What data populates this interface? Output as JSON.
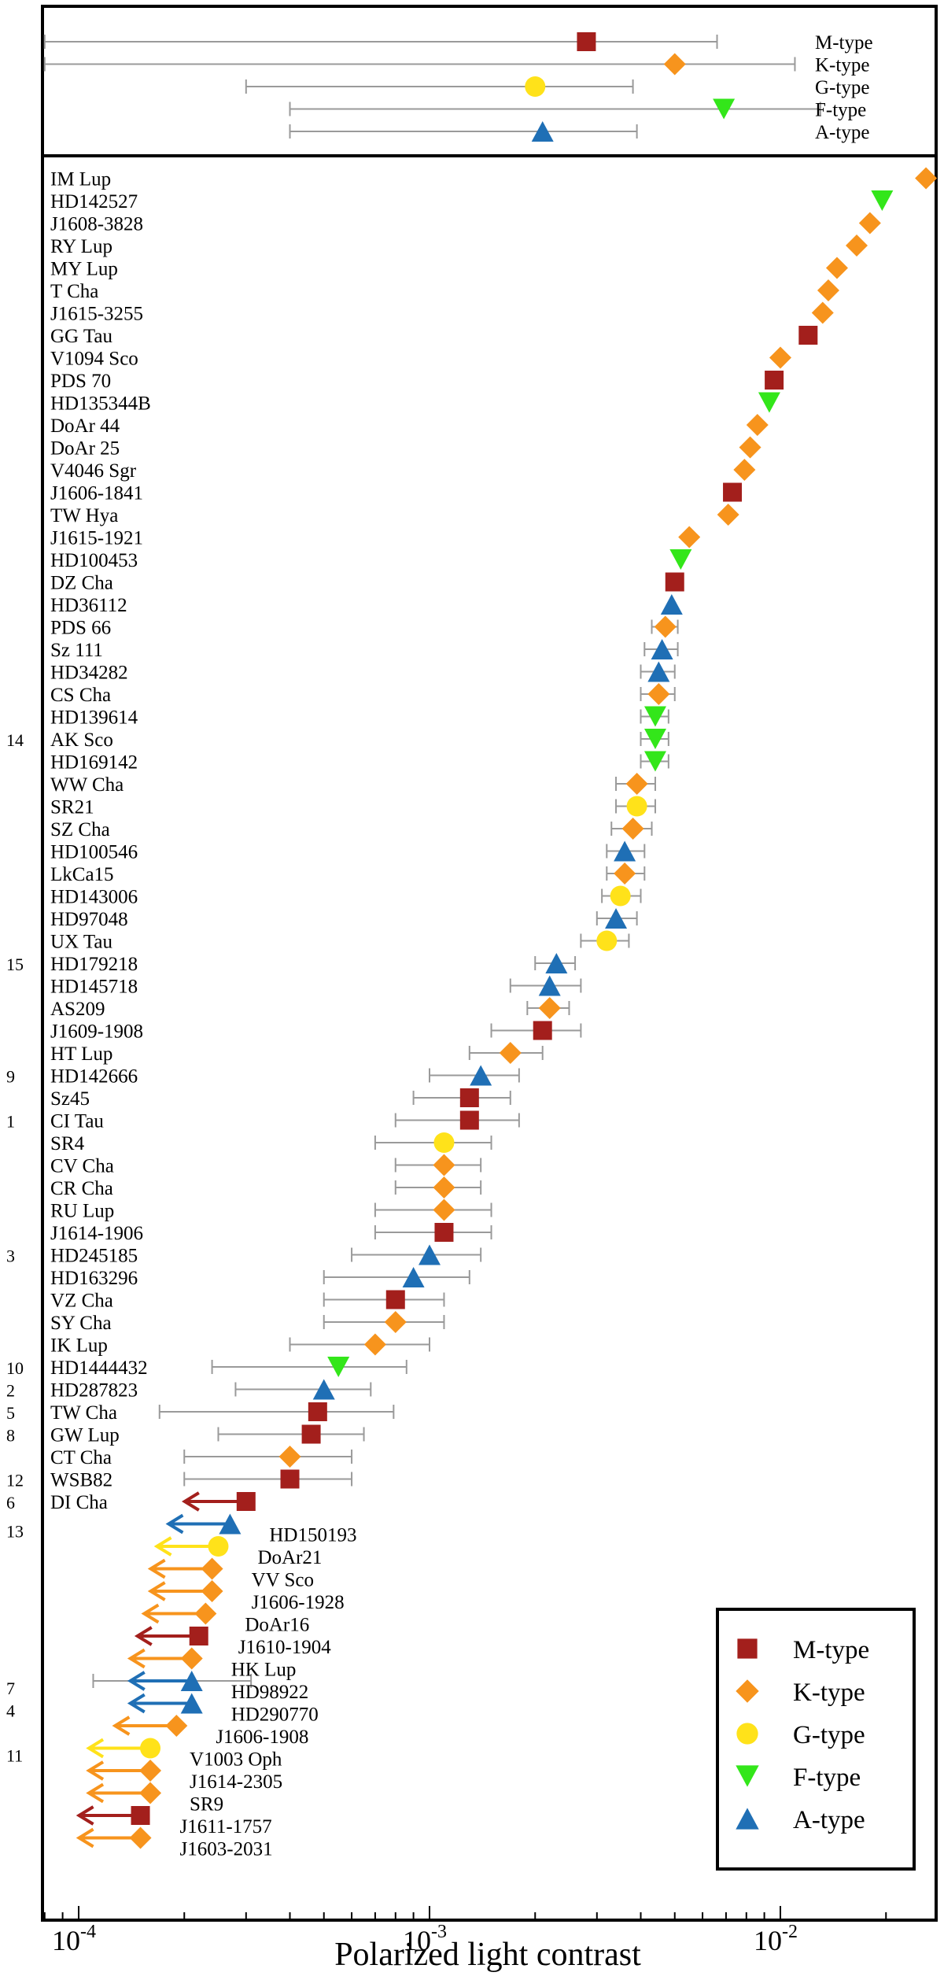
{
  "chart_data": {
    "type": "scatter",
    "xlabel": "Polarized light contrast",
    "xscale": "log",
    "xlim": [
      8e-05,
      0.03
    ],
    "x_ticks": [
      {
        "value": 0.0001,
        "base": "10",
        "exp": "-4"
      },
      {
        "value": 0.001,
        "base": "10",
        "exp": "-3"
      },
      {
        "value": 0.01,
        "base": "10",
        "exp": "-2"
      }
    ],
    "colors": {
      "M-type": "#a31f1c",
      "K-type": "#f7941d",
      "G-type": "#ffe21a",
      "F-type": "#33e61a",
      "A-type": "#1f6fb5"
    },
    "markers": {
      "M-type": "square",
      "K-type": "diamond",
      "G-type": "circle",
      "F-type": "triangle-down",
      "A-type": "triangle-up"
    },
    "legend": {
      "position": "bottom-right",
      "entries": [
        "M-type",
        "K-type",
        "G-type",
        "F-type",
        "A-type"
      ]
    },
    "summary": [
      {
        "type": "M-type",
        "label": "M-type",
        "x": 0.0028,
        "lo": 8e-05,
        "hi": 0.0066
      },
      {
        "type": "K-type",
        "label": "K-type",
        "x": 0.005,
        "lo": 8e-05,
        "hi": 0.011
      },
      {
        "type": "G-type",
        "label": "G-type",
        "x": 0.002,
        "lo": 0.0003,
        "hi": 0.0038
      },
      {
        "type": "F-type",
        "label": "F-type",
        "x": 0.0069,
        "lo": 0.0004,
        "hi": 0.013
      },
      {
        "type": "A-type",
        "label": "A-type",
        "x": 0.0021,
        "lo": 0.0004,
        "hi": 0.0039
      }
    ],
    "detections": [
      {
        "name": "IM Lup",
        "type": "K-type",
        "x": 0.026,
        "lo": null,
        "hi": null,
        "ref": ""
      },
      {
        "name": "HD142527",
        "type": "F-type",
        "x": 0.0195,
        "lo": null,
        "hi": null,
        "ref": ""
      },
      {
        "name": "J1608-3828",
        "type": "K-type",
        "x": 0.018,
        "lo": null,
        "hi": null,
        "ref": ""
      },
      {
        "name": "RY Lup",
        "type": "K-type",
        "x": 0.0165,
        "lo": null,
        "hi": null,
        "ref": ""
      },
      {
        "name": "MY Lup",
        "type": "K-type",
        "x": 0.0145,
        "lo": null,
        "hi": null,
        "ref": ""
      },
      {
        "name": "T Cha",
        "type": "K-type",
        "x": 0.0137,
        "lo": null,
        "hi": null,
        "ref": ""
      },
      {
        "name": "J1615-3255",
        "type": "K-type",
        "x": 0.0132,
        "lo": null,
        "hi": null,
        "ref": ""
      },
      {
        "name": "GG Tau",
        "type": "M-type",
        "x": 0.012,
        "lo": null,
        "hi": null,
        "ref": ""
      },
      {
        "name": "V1094 Sco",
        "type": "K-type",
        "x": 0.01,
        "lo": null,
        "hi": null,
        "ref": ""
      },
      {
        "name": "PDS 70",
        "type": "M-type",
        "x": 0.0096,
        "lo": null,
        "hi": null,
        "ref": ""
      },
      {
        "name": "HD135344B",
        "type": "F-type",
        "x": 0.0093,
        "lo": null,
        "hi": null,
        "ref": ""
      },
      {
        "name": "DoAr 44",
        "type": "K-type",
        "x": 0.0086,
        "lo": null,
        "hi": null,
        "ref": ""
      },
      {
        "name": "DoAr 25",
        "type": "K-type",
        "x": 0.0082,
        "lo": null,
        "hi": null,
        "ref": ""
      },
      {
        "name": "V4046 Sgr",
        "type": "K-type",
        "x": 0.0079,
        "lo": null,
        "hi": null,
        "ref": ""
      },
      {
        "name": "J1606-1841",
        "type": "M-type",
        "x": 0.0073,
        "lo": null,
        "hi": null,
        "ref": ""
      },
      {
        "name": "TW Hya",
        "type": "K-type",
        "x": 0.0071,
        "lo": null,
        "hi": null,
        "ref": ""
      },
      {
        "name": "J1615-1921",
        "type": "K-type",
        "x": 0.0055,
        "lo": null,
        "hi": null,
        "ref": ""
      },
      {
        "name": "HD100453",
        "type": "F-type",
        "x": 0.0052,
        "lo": null,
        "hi": null,
        "ref": ""
      },
      {
        "name": "DZ Cha",
        "type": "M-type",
        "x": 0.005,
        "lo": null,
        "hi": null,
        "ref": ""
      },
      {
        "name": "HD36112",
        "type": "A-type",
        "x": 0.0049,
        "lo": null,
        "hi": null,
        "ref": ""
      },
      {
        "name": "PDS 66",
        "type": "K-type",
        "x": 0.0047,
        "lo": 0.0043,
        "hi": 0.0051,
        "ref": ""
      },
      {
        "name": "Sz 111",
        "type": "A-type",
        "x": 0.0046,
        "lo": 0.0041,
        "hi": 0.0051,
        "ref": ""
      },
      {
        "name": "HD34282",
        "type": "A-type",
        "x": 0.0045,
        "lo": 0.004,
        "hi": 0.005,
        "ref": ""
      },
      {
        "name": "CS Cha",
        "type": "K-type",
        "x": 0.0045,
        "lo": 0.004,
        "hi": 0.005,
        "ref": ""
      },
      {
        "name": "HD139614",
        "type": "F-type",
        "x": 0.0044,
        "lo": 0.004,
        "hi": 0.0048,
        "ref": ""
      },
      {
        "name": "AK Sco",
        "type": "F-type",
        "x": 0.0044,
        "lo": 0.004,
        "hi": 0.0048,
        "ref": "14"
      },
      {
        "name": "HD169142",
        "type": "F-type",
        "x": 0.0044,
        "lo": 0.004,
        "hi": 0.0048,
        "ref": ""
      },
      {
        "name": "WW Cha",
        "type": "K-type",
        "x": 0.0039,
        "lo": 0.0034,
        "hi": 0.0044,
        "ref": ""
      },
      {
        "name": "SR21",
        "type": "G-type",
        "x": 0.0039,
        "lo": 0.0034,
        "hi": 0.0044,
        "ref": ""
      },
      {
        "name": "SZ Cha",
        "type": "K-type",
        "x": 0.0038,
        "lo": 0.0033,
        "hi": 0.0043,
        "ref": ""
      },
      {
        "name": "HD100546",
        "type": "A-type",
        "x": 0.0036,
        "lo": 0.0032,
        "hi": 0.0041,
        "ref": ""
      },
      {
        "name": "LkCa15",
        "type": "K-type",
        "x": 0.0036,
        "lo": 0.0032,
        "hi": 0.0041,
        "ref": ""
      },
      {
        "name": "HD143006",
        "type": "G-type",
        "x": 0.0035,
        "lo": 0.0031,
        "hi": 0.004,
        "ref": ""
      },
      {
        "name": "HD97048",
        "type": "A-type",
        "x": 0.0034,
        "lo": 0.003,
        "hi": 0.0039,
        "ref": ""
      },
      {
        "name": "UX Tau",
        "type": "G-type",
        "x": 0.0032,
        "lo": 0.0027,
        "hi": 0.0037,
        "ref": ""
      },
      {
        "name": "HD179218",
        "type": "A-type",
        "x": 0.0023,
        "lo": 0.002,
        "hi": 0.0026,
        "ref": "15"
      },
      {
        "name": "HD145718",
        "type": "A-type",
        "x": 0.0022,
        "lo": 0.0017,
        "hi": 0.0027,
        "ref": ""
      },
      {
        "name": "AS209",
        "type": "K-type",
        "x": 0.0022,
        "lo": 0.0019,
        "hi": 0.0025,
        "ref": ""
      },
      {
        "name": "J1609-1908",
        "type": "M-type",
        "x": 0.0021,
        "lo": 0.0015,
        "hi": 0.0027,
        "ref": ""
      },
      {
        "name": "HT Lup",
        "type": "K-type",
        "x": 0.0017,
        "lo": 0.0013,
        "hi": 0.0021,
        "ref": ""
      },
      {
        "name": "HD142666",
        "type": "A-type",
        "x": 0.0014,
        "lo": 0.001,
        "hi": 0.0018,
        "ref": "9"
      },
      {
        "name": "Sz45",
        "type": "M-type",
        "x": 0.0013,
        "lo": 0.0009,
        "hi": 0.0017,
        "ref": ""
      },
      {
        "name": "CI Tau",
        "type": "M-type",
        "x": 0.0013,
        "lo": 0.0008,
        "hi": 0.0018,
        "ref": "1"
      },
      {
        "name": "SR4",
        "type": "G-type",
        "x": 0.0011,
        "lo": 0.0007,
        "hi": 0.0015,
        "ref": ""
      },
      {
        "name": "CV Cha",
        "type": "K-type",
        "x": 0.0011,
        "lo": 0.0008,
        "hi": 0.0014,
        "ref": ""
      },
      {
        "name": "CR Cha",
        "type": "K-type",
        "x": 0.0011,
        "lo": 0.0008,
        "hi": 0.0014,
        "ref": ""
      },
      {
        "name": "RU Lup",
        "type": "K-type",
        "x": 0.0011,
        "lo": 0.0007,
        "hi": 0.0015,
        "ref": ""
      },
      {
        "name": "J1614-1906",
        "type": "M-type",
        "x": 0.0011,
        "lo": 0.0007,
        "hi": 0.0015,
        "ref": ""
      },
      {
        "name": "HD245185",
        "type": "A-type",
        "x": 0.001,
        "lo": 0.0006,
        "hi": 0.0014,
        "ref": "3"
      },
      {
        "name": "HD163296",
        "type": "A-type",
        "x": 0.0009,
        "lo": 0.0005,
        "hi": 0.0013,
        "ref": ""
      },
      {
        "name": "VZ Cha",
        "type": "M-type",
        "x": 0.0008,
        "lo": 0.0005,
        "hi": 0.0011,
        "ref": ""
      },
      {
        "name": "SY Cha",
        "type": "K-type",
        "x": 0.0008,
        "lo": 0.0005,
        "hi": 0.0011,
        "ref": ""
      },
      {
        "name": "IK Lup",
        "type": "K-type",
        "x": 0.0007,
        "lo": 0.0004,
        "hi": 0.001,
        "ref": ""
      },
      {
        "name": "HD1444432",
        "type": "F-type",
        "x": 0.00055,
        "lo": 0.00024,
        "hi": 0.00086,
        "ref": "10"
      },
      {
        "name": "HD287823",
        "type": "A-type",
        "x": 0.0005,
        "lo": 0.00028,
        "hi": 0.00068,
        "ref": "2"
      },
      {
        "name": "TW Cha",
        "type": "M-type",
        "x": 0.00048,
        "lo": 0.00017,
        "hi": 0.00079,
        "ref": "5"
      },
      {
        "name": "GW Lup",
        "type": "M-type",
        "x": 0.00046,
        "lo": 0.00025,
        "hi": 0.00065,
        "ref": "8"
      },
      {
        "name": "CT Cha",
        "type": "K-type",
        "x": 0.0004,
        "lo": 0.0002,
        "hi": 0.0006,
        "ref": ""
      },
      {
        "name": "WSB82",
        "type": "M-type",
        "x": 0.0004,
        "lo": 0.0002,
        "hi": 0.0006,
        "ref": "12"
      }
    ],
    "upper_limits": [
      {
        "name": "DI Cha",
        "type": "M-type",
        "x": 0.0003,
        "ref": "6"
      },
      {
        "name": "HD150193",
        "type": "A-type",
        "x": 0.00027,
        "ref": "13"
      },
      {
        "name": "DoAr21",
        "type": "G-type",
        "x": 0.00025,
        "ref": ""
      },
      {
        "name": "VV Sco",
        "type": "K-type",
        "x": 0.00024,
        "ref": ""
      },
      {
        "name": "J1606-1928",
        "type": "K-type",
        "x": 0.00024,
        "ref": ""
      },
      {
        "name": "DoAr16",
        "type": "K-type",
        "x": 0.00023,
        "ref": ""
      },
      {
        "name": "J1610-1904",
        "type": "M-type",
        "x": 0.00022,
        "ref": ""
      },
      {
        "name": "HK Lup",
        "type": "K-type",
        "x": 0.00021,
        "ref": ""
      },
      {
        "name": "HD98922",
        "type": "A-type",
        "x": 0.00021,
        "ref": "7",
        "lo": 0.00011,
        "hi": 0.00031
      },
      {
        "name": "HD290770",
        "type": "A-type",
        "x": 0.00021,
        "ref": "4"
      },
      {
        "name": "J1606-1908",
        "type": "K-type",
        "x": 0.00019,
        "ref": ""
      },
      {
        "name": "V1003 Oph",
        "type": "G-type",
        "x": 0.00016,
        "ref": "11"
      },
      {
        "name": "J1614-2305",
        "type": "K-type",
        "x": 0.00016,
        "ref": ""
      },
      {
        "name": "SR9",
        "type": "K-type",
        "x": 0.00016,
        "ref": ""
      },
      {
        "name": "J1611-1757",
        "type": "M-type",
        "x": 0.00015,
        "ref": ""
      },
      {
        "name": "J1603-2031",
        "type": "K-type",
        "x": 0.00015,
        "ref": ""
      }
    ]
  }
}
